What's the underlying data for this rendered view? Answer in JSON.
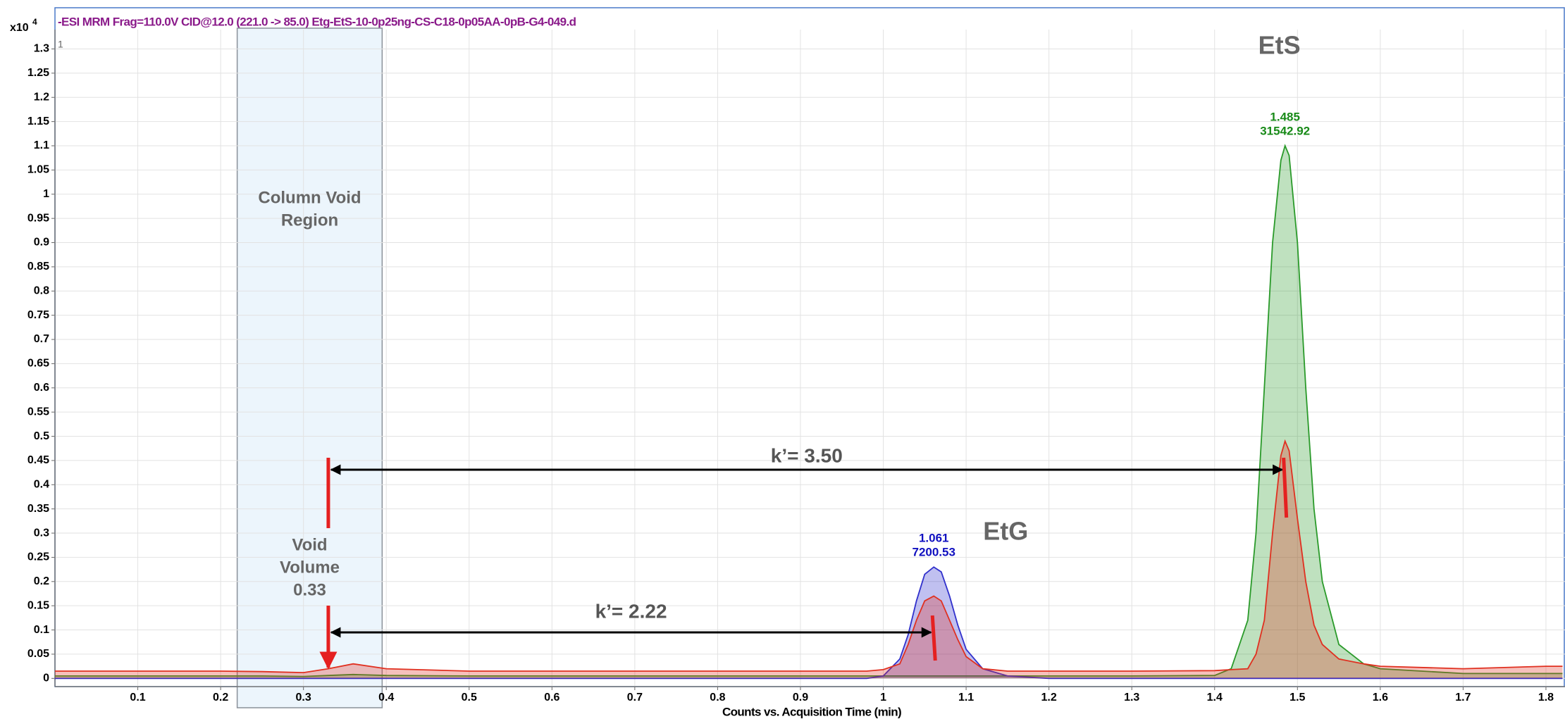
{
  "chart_data": {
    "type": "line",
    "title": "-ESI MRM Frag=110.0V CID@12.0 (221.0 -> 85.0) Etg-EtS-10-0p25ng-CS-C18-0p05AA-0pB-G4-049.d",
    "panel_label": "1",
    "y_multiplier": "x10",
    "y_exponent": "4",
    "x_label": "Counts vs. Acquisition Time (min)",
    "xlim": [
      0,
      1.823
    ],
    "ylim": [
      -0.017,
      1.34
    ],
    "xticks": [
      0.1,
      0.2,
      0.3,
      0.4,
      0.5,
      0.6,
      0.7,
      0.8,
      0.9,
      1,
      1.1,
      1.2,
      1.3,
      1.4,
      1.5,
      1.6,
      1.7,
      1.8
    ],
    "yticks": [
      0,
      0.05,
      0.1,
      0.15,
      0.2,
      0.25,
      0.3,
      0.35,
      0.4,
      0.45,
      0.5,
      0.55,
      0.6,
      0.65,
      0.7,
      0.75,
      0.8,
      0.85,
      0.9,
      0.95,
      1,
      1.05,
      1.1,
      1.15,
      1.2,
      1.25,
      1.3
    ],
    "grid": true,
    "filled": true,
    "x": [
      0,
      0.1,
      0.2,
      0.25,
      0.3,
      0.33,
      0.36,
      0.4,
      0.5,
      0.6,
      0.7,
      0.8,
      0.9,
      0.98,
      1.0,
      1.02,
      1.03,
      1.04,
      1.05,
      1.061,
      1.07,
      1.08,
      1.09,
      1.1,
      1.12,
      1.15,
      1.2,
      1.3,
      1.4,
      1.42,
      1.44,
      1.45,
      1.46,
      1.47,
      1.48,
      1.485,
      1.49,
      1.5,
      1.51,
      1.52,
      1.53,
      1.55,
      1.58,
      1.6,
      1.7,
      1.8,
      1.82
    ],
    "series": [
      {
        "color": "#2a9a2a",
        "values": [
          0.005,
          0.005,
          0.005,
          0.005,
          0.004,
          0.006,
          0.008,
          0.006,
          0.005,
          0.005,
          0.005,
          0.005,
          0.005,
          0.005,
          0.005,
          0.005,
          0.005,
          0.005,
          0.005,
          0.005,
          0.005,
          0.005,
          0.005,
          0.005,
          0.005,
          0.005,
          0.005,
          0.005,
          0.006,
          0.02,
          0.12,
          0.3,
          0.6,
          0.9,
          1.07,
          1.1,
          1.08,
          0.9,
          0.6,
          0.35,
          0.2,
          0.07,
          0.03,
          0.02,
          0.01,
          0.01,
          0.01
        ]
      },
      {
        "color": "#3030cc",
        "values": [
          0,
          0,
          0,
          0,
          0,
          0,
          0,
          0,
          0,
          0,
          0,
          0,
          0,
          0,
          0.005,
          0.04,
          0.09,
          0.16,
          0.215,
          0.23,
          0.22,
          0.17,
          0.11,
          0.06,
          0.02,
          0.005,
          0,
          0,
          0,
          0,
          0,
          0,
          0,
          0,
          0,
          0,
          0,
          0,
          0,
          0,
          0,
          0,
          0,
          0,
          0,
          0,
          0
        ]
      },
      {
        "color": "#e03020",
        "values": [
          0.015,
          0.015,
          0.015,
          0.014,
          0.012,
          0.02,
          0.03,
          0.02,
          0.015,
          0.015,
          0.015,
          0.015,
          0.015,
          0.015,
          0.018,
          0.03,
          0.07,
          0.12,
          0.16,
          0.17,
          0.16,
          0.12,
          0.08,
          0.045,
          0.02,
          0.015,
          0.015,
          0.015,
          0.016,
          0.018,
          0.02,
          0.05,
          0.12,
          0.3,
          0.46,
          0.49,
          0.47,
          0.33,
          0.2,
          0.11,
          0.07,
          0.04,
          0.03,
          0.025,
          0.02,
          0.025,
          0.025
        ]
      }
    ],
    "void_region": [
      0.22,
      0.395
    ],
    "void_region_label": [
      "Column Void",
      "Region"
    ],
    "void_label": [
      "Void",
      "Volume"
    ],
    "void_volume": 0.33,
    "peaks": [
      {
        "name": "EtG",
        "rt": 1.061,
        "area": 7200.53,
        "color": "#1010c0",
        "k_label": "k’= 2.22"
      },
      {
        "name": "EtS",
        "rt": 1.485,
        "area": 31542.92,
        "color": "#188a18",
        "k_label": "k’= 3.50"
      }
    ]
  }
}
